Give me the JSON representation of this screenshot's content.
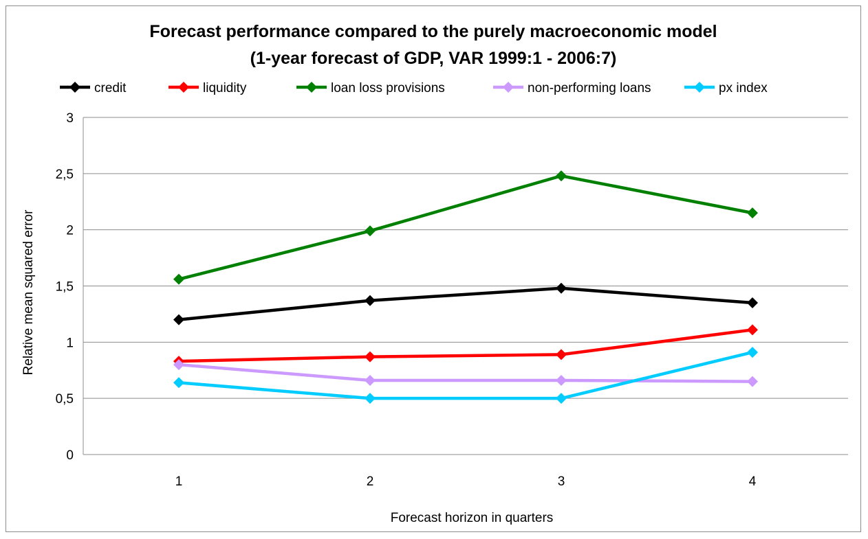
{
  "chart_data": {
    "type": "line",
    "title_line1": "Forecast performance compared to the purely macroeconomic model",
    "title_line2": "(1-year forecast of GDP, VAR 1999:1 - 2006:7)",
    "xlabel": "Forecast horizon in quarters",
    "ylabel": "Relative mean squared error",
    "categories": [
      "1",
      "2",
      "3",
      "4"
    ],
    "ylim": [
      0,
      3
    ],
    "yticks": [
      "0",
      "0,5",
      "1",
      "1,5",
      "2",
      "2,5",
      "3"
    ],
    "ytick_values": [
      0,
      0.5,
      1,
      1.5,
      2,
      2.5,
      3
    ],
    "grid": "horizontal",
    "legend_position": "top",
    "series": [
      {
        "name": "credit",
        "color": "#000000",
        "values": [
          1.2,
          1.37,
          1.48,
          1.35
        ]
      },
      {
        "name": "liquidity",
        "color": "#ff0000",
        "values": [
          0.83,
          0.87,
          0.89,
          1.11
        ]
      },
      {
        "name": "loan loss provisions",
        "color": "#008000",
        "values": [
          1.56,
          1.99,
          2.48,
          2.15
        ]
      },
      {
        "name": "non-performing loans",
        "color": "#cc99ff",
        "values": [
          0.8,
          0.66,
          0.66,
          0.65
        ]
      },
      {
        "name": "px index",
        "color": "#00ccff",
        "values": [
          0.64,
          0.5,
          0.5,
          0.91
        ]
      }
    ]
  }
}
